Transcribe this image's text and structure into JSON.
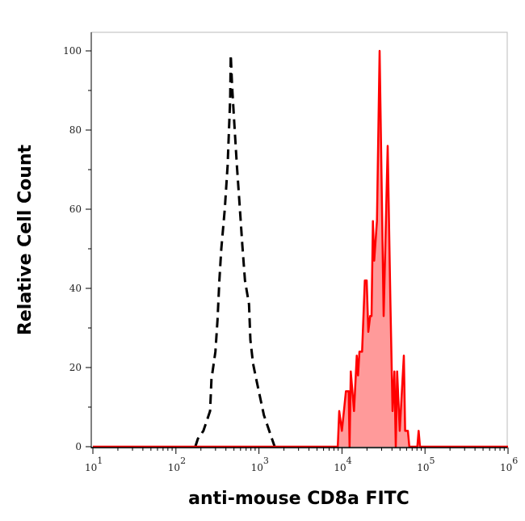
{
  "chart_data": {
    "type": "area",
    "title": "",
    "xlabel": "anti-mouse CD8a FITC",
    "ylabel": "Relative Cell Count",
    "xscale": "log",
    "xlim": [
      10,
      1000000
    ],
    "ylim": [
      0,
      100
    ],
    "grid": false,
    "x_ticks": [
      {
        "base": "10",
        "exp": "1",
        "value": 10
      },
      {
        "base": "10",
        "exp": "2",
        "value": 100
      },
      {
        "base": "10",
        "exp": "3",
        "value": 1000
      },
      {
        "base": "10",
        "exp": "4",
        "value": 10000
      },
      {
        "base": "10",
        "exp": "5",
        "value": 100000
      },
      {
        "base": "10",
        "exp": "6",
        "value": 1000000
      }
    ],
    "y_ticks": [
      "0",
      "20",
      "40",
      "60",
      "80",
      "100"
    ],
    "series": [
      {
        "style": "dashed-line",
        "color": "#000000",
        "x": [
          171,
          184,
          214,
          258,
          268,
          299,
          317,
          334,
          352,
          388,
          419,
          434,
          451,
          458,
          475,
          504,
          542,
          585,
          631,
          679,
          759,
          789,
          849,
          929,
          1146,
          1434,
          1547
        ],
        "y": [
          0,
          2,
          4,
          9,
          17,
          24,
          32,
          42,
          50,
          60,
          71,
          79,
          88,
          99,
          91,
          82,
          71,
          61,
          51,
          42,
          36,
          27,
          21,
          17,
          8,
          2,
          0
        ]
      },
      {
        "style": "filled-line",
        "color": "#ff0000",
        "fill": "#ff9a9a",
        "x": [
          10,
          8910,
          9270,
          9980,
          11160,
          12050,
          12330,
          12770,
          13960,
          15070,
          15630,
          16220,
          17460,
          18840,
          19850,
          20760,
          21840,
          22690,
          23580,
          24450,
          25390,
          26370,
          28380,
          31770,
          35550,
          38290,
          40640,
          42770,
          44460,
          46130,
          49660,
          55590,
          57680,
          62230,
          64700,
          80910,
          83750,
          87100,
          1000000
        ],
        "y": [
          0,
          0,
          9,
          4,
          14,
          14,
          0,
          19,
          9,
          23,
          18,
          24,
          24,
          42,
          42,
          29,
          33,
          33,
          57,
          47,
          52,
          57,
          100,
          33,
          76,
          37,
          9,
          19,
          0,
          19,
          4,
          23,
          4,
          4,
          0,
          0,
          4,
          0,
          0
        ]
      }
    ]
  }
}
